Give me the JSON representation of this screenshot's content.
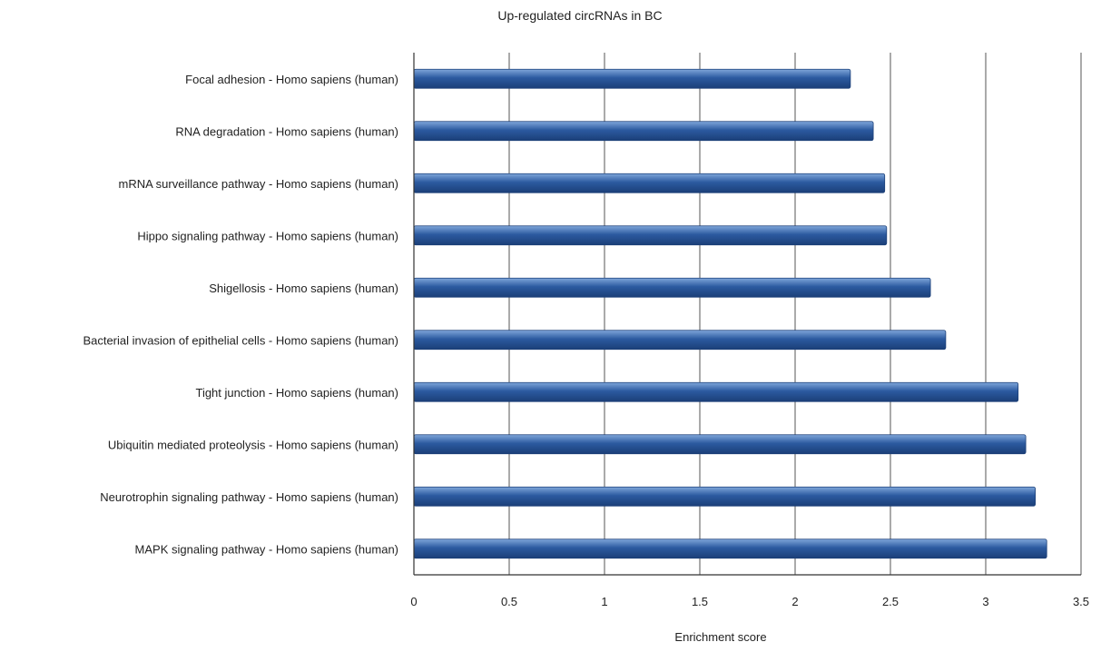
{
  "chart_data": {
    "type": "bar",
    "orientation": "horizontal",
    "title": "Up-regulated circRNAs in BC",
    "xlabel": "Enrichment score",
    "ylabel": "",
    "xlim": [
      0,
      3.5
    ],
    "xticks": [
      "0",
      "0.5",
      "1",
      "1.5",
      "2",
      "2.5",
      "3",
      "3.5"
    ],
    "grid": "vertical",
    "bar_color": "#2c5aa0",
    "categories": [
      "Focal adhesion - Homo sapiens (human)",
      "RNA degradation - Homo sapiens (human)",
      "mRNA surveillance pathway - Homo sapiens (human)",
      "Hippo signaling pathway - Homo sapiens (human)",
      "Shigellosis - Homo sapiens (human)",
      "Bacterial invasion of epithelial cells - Homo sapiens (human)",
      "Tight junction - Homo sapiens (human)",
      "Ubiquitin mediated proteolysis - Homo sapiens (human)",
      "Neurotrophin signaling pathway - Homo sapiens (human)",
      "MAPK signaling pathway - Homo sapiens (human)"
    ],
    "values": [
      2.29,
      2.41,
      2.47,
      2.48,
      2.71,
      2.79,
      3.17,
      3.21,
      3.26,
      3.32
    ]
  }
}
